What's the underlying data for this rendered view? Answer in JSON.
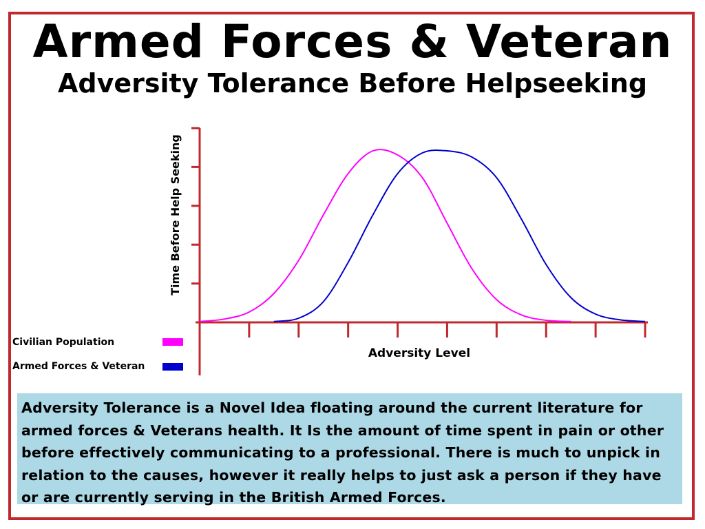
{
  "title": "Armed Forces & Veteran",
  "subtitle": "Adversity Tolerance Before Helpseeking",
  "colors": {
    "border": "#c0282e",
    "axis": "#c0282e",
    "civilian": "#ff00ff",
    "armed_forces": "#0000cc",
    "note_background": "#add8e6"
  },
  "chart_data": {
    "type": "line",
    "xlabel": "Adversity Level",
    "ylabel": "Time Before Help Seeking",
    "xlim": [
      0,
      9
    ],
    "ylim": [
      0,
      4.7
    ],
    "x_ticks": 9,
    "y_ticks": 5,
    "grid": false,
    "series": [
      {
        "name": "Civilian Population",
        "color": "#ff00ff",
        "x": [
          0,
          0.5,
          1,
          1.5,
          2,
          2.5,
          3,
          3.5,
          4,
          4.5,
          5,
          5.5,
          6,
          6.5,
          7,
          7.5
        ],
        "y": [
          0.02,
          0.08,
          0.25,
          0.7,
          1.5,
          2.6,
          3.6,
          4.15,
          4.05,
          3.5,
          2.4,
          1.3,
          0.55,
          0.18,
          0.05,
          0.02
        ]
      },
      {
        "name": "Armed Forces & Veteran",
        "color": "#0000cc",
        "x": [
          1.5,
          2,
          2.5,
          3,
          3.5,
          4,
          4.5,
          5,
          5.5,
          6,
          6.5,
          7,
          7.5,
          8,
          8.5,
          9
        ],
        "y": [
          0.02,
          0.1,
          0.5,
          1.45,
          2.6,
          3.6,
          4.1,
          4.15,
          4.0,
          3.5,
          2.5,
          1.4,
          0.6,
          0.2,
          0.06,
          0.02
        ]
      }
    ]
  },
  "note": "Adversity Tolerance is a Novel Idea floating around the current literature for armed forces & Veterans health. It Is the amount of time spent in pain or other before effectively communicating to a professional. There is much to unpick in relation to the causes, however it really helps to just ask a person if they have or are currently serving in the British Armed Forces."
}
